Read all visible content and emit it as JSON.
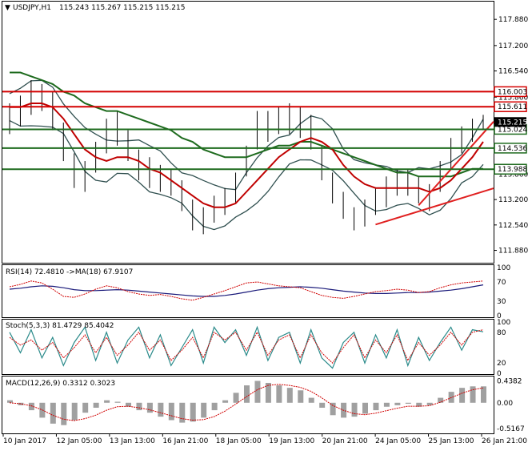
{
  "colors": {
    "background": "#ffffff",
    "price_bars": "#000000",
    "bollinger": "#2f4f4f",
    "ma_fast": "#c00000",
    "ma_slow": "#1e6b1e",
    "resistance": "#d40000",
    "support": "#1e6b1e",
    "trendline": "#e02020",
    "rsi": "#1a1a7a",
    "rsi_signal": "#d00000",
    "stoch_main": "#2a8a8a",
    "stoch_signal": "#d00000",
    "macd_hist": "#a0a0a0",
    "macd_signal": "#d00000"
  },
  "chart_data": {
    "type": "candlestick",
    "symbol_label": "USDJPY,H1",
    "ohlc_label": "115.243 115.267 115.215 115.215",
    "last_price": 115.215,
    "x_labels": [
      "10 Jan 2017",
      "12 Jan 05:00",
      "13 Jan 13:00",
      "16 Jan 21:00",
      "18 Jan 05:00",
      "19 Jan 13:00",
      "20 Jan 21:00",
      "24 Jan 05:00",
      "25 Jan 13:00",
      "26 Jan 21:00"
    ],
    "price_axis": {
      "ylim": [
        111.6,
        118.3
      ],
      "ticks": [
        "117.880",
        "117.200",
        "116.540",
        "115.860",
        "113.860",
        "113.200",
        "112.540",
        "111.880"
      ]
    },
    "price_close": [
      115.3,
      115.5,
      115.8,
      115.9,
      115.6,
      114.7,
      113.9,
      113.8,
      114.3,
      114.8,
      115.0,
      114.6,
      114.1,
      113.9,
      113.8,
      113.7,
      113.3,
      112.8,
      112.6,
      112.9,
      113.1,
      113.5,
      114.2,
      114.9,
      115.1,
      115.3,
      115.3,
      115.2,
      115.0,
      114.2,
      113.5,
      113.0,
      112.7,
      112.8,
      113.1,
      113.4,
      113.6,
      113.7,
      113.5,
      113.2,
      113.8,
      114.4,
      114.8,
      115.0,
      115.2
    ],
    "price_high": [
      115.7,
      115.9,
      116.3,
      116.2,
      116.0,
      115.2,
      114.4,
      114.2,
      114.7,
      115.3,
      115.5,
      115.0,
      114.5,
      114.3,
      114.1,
      114.0,
      113.7,
      113.2,
      113.0,
      113.3,
      113.5,
      113.9,
      114.6,
      115.5,
      115.5,
      115.6,
      115.7,
      115.6,
      115.4,
      114.6,
      113.9,
      113.4,
      113.0,
      113.2,
      113.5,
      113.8,
      114.0,
      114.0,
      113.8,
      113.6,
      114.2,
      114.8,
      115.1,
      115.3,
      115.4
    ],
    "price_low": [
      114.9,
      115.1,
      115.4,
      115.5,
      115.0,
      114.2,
      113.5,
      113.4,
      113.9,
      114.4,
      114.6,
      114.2,
      113.7,
      113.5,
      113.4,
      113.3,
      112.9,
      112.4,
      112.3,
      112.6,
      112.8,
      113.1,
      113.8,
      114.5,
      114.7,
      114.9,
      114.9,
      114.8,
      114.5,
      113.7,
      113.1,
      112.7,
      112.4,
      112.5,
      112.8,
      113.0,
      113.3,
      113.3,
      113.1,
      112.9,
      113.4,
      114.0,
      114.4,
      114.7,
      115.0
    ],
    "ma_fast": [
      115.6,
      115.6,
      115.7,
      115.7,
      115.6,
      115.3,
      114.9,
      114.5,
      114.3,
      114.2,
      114.3,
      114.3,
      114.2,
      114.0,
      113.9,
      113.7,
      113.5,
      113.3,
      113.1,
      113.0,
      113.0,
      113.1,
      113.4,
      113.7,
      114.0,
      114.3,
      114.5,
      114.7,
      114.8,
      114.7,
      114.5,
      114.1,
      113.8,
      113.6,
      113.5,
      113.5,
      113.5,
      113.5,
      113.5,
      113.4,
      113.5,
      113.7,
      114.0,
      114.3,
      114.7
    ],
    "ma_slow": [
      116.5,
      116.5,
      116.4,
      116.3,
      116.2,
      116.0,
      115.9,
      115.7,
      115.6,
      115.5,
      115.5,
      115.4,
      115.3,
      115.2,
      115.1,
      115.0,
      114.8,
      114.7,
      114.5,
      114.4,
      114.3,
      114.3,
      114.3,
      114.4,
      114.5,
      114.6,
      114.6,
      114.7,
      114.7,
      114.6,
      114.5,
      114.4,
      114.3,
      114.2,
      114.1,
      114.0,
      113.9,
      113.9,
      113.8,
      113.8,
      113.8,
      113.8,
      113.9,
      114.0,
      114.0
    ],
    "horizontal_levels": [
      {
        "label": "116.003",
        "value": 116.003,
        "kind": "resistance"
      },
      {
        "label": "115.611",
        "value": 115.611,
        "kind": "resistance"
      },
      {
        "label": "115.024",
        "value": 115.024,
        "kind": "support"
      },
      {
        "label": "114.536",
        "value": 114.536,
        "kind": "support"
      },
      {
        "label": "113.988",
        "value": 113.988,
        "kind": "support"
      }
    ],
    "trendlines": [
      {
        "from_index": 34,
        "from_value": 112.55,
        "to_index": 44,
        "to_value": 113.45
      },
      {
        "from_index": 38,
        "from_value": 113.05,
        "to_index": 44,
        "to_value": 115.1
      }
    ],
    "rsi": {
      "label": "RSI(14) 72.4810 ->MA(18) 67.9107",
      "ylim": [
        0,
        100
      ],
      "ticks": [
        "100",
        "70",
        "30",
        "0"
      ],
      "values": [
        60,
        65,
        72,
        68,
        55,
        40,
        38,
        45,
        55,
        62,
        58,
        50,
        45,
        42,
        44,
        40,
        35,
        32,
        38,
        45,
        52,
        60,
        68,
        70,
        66,
        62,
        60,
        58,
        50,
        42,
        38,
        36,
        40,
        45,
        50,
        52,
        55,
        53,
        48,
        50,
        58,
        64,
        68,
        70,
        72
      ],
      "signal": [
        55,
        57,
        60,
        62,
        61,
        58,
        54,
        52,
        52,
        53,
        54,
        53,
        51,
        49,
        47,
        45,
        43,
        41,
        40,
        40,
        42,
        45,
        49,
        53,
        56,
        58,
        59,
        60,
        59,
        57,
        54,
        51,
        49,
        47,
        46,
        46,
        47,
        48,
        48,
        49,
        51,
        53,
        56,
        60,
        64
      ]
    },
    "stoch": {
      "label": "Stoch(5,3,3) 81.4729 85.4042",
      "ylim": [
        0,
        100
      ],
      "ticks": [
        "100",
        "80",
        "20",
        "0"
      ],
      "main": [
        80,
        40,
        85,
        30,
        70,
        15,
        60,
        90,
        25,
        80,
        20,
        65,
        90,
        30,
        75,
        15,
        50,
        85,
        20,
        90,
        60,
        85,
        35,
        90,
        25,
        70,
        80,
        20,
        85,
        30,
        10,
        60,
        80,
        20,
        75,
        30,
        85,
        15,
        70,
        25,
        60,
        90,
        45,
        85,
        81
      ],
      "signal": [
        70,
        55,
        65,
        45,
        60,
        30,
        50,
        75,
        40,
        70,
        35,
        55,
        80,
        45,
        65,
        25,
        45,
        70,
        30,
        80,
        65,
        80,
        45,
        80,
        35,
        65,
        75,
        30,
        75,
        40,
        20,
        50,
        75,
        30,
        65,
        40,
        75,
        25,
        60,
        35,
        55,
        80,
        55,
        80,
        85
      ]
    },
    "macd": {
      "label": "MACD(12,26,9) 0.3312 0.3023",
      "ylim": [
        -0.6,
        0.48
      ],
      "ticks": [
        "0.4382",
        "0.00",
        "-0.5167"
      ],
      "hist": [
        0.05,
        -0.05,
        -0.15,
        -0.3,
        -0.42,
        -0.45,
        -0.35,
        -0.2,
        -0.1,
        0.05,
        0.02,
        -0.08,
        -0.15,
        -0.2,
        -0.28,
        -0.35,
        -0.4,
        -0.38,
        -0.3,
        -0.15,
        0.05,
        0.2,
        0.35,
        0.44,
        0.4,
        0.35,
        0.3,
        0.25,
        0.1,
        -0.1,
        -0.25,
        -0.3,
        -0.28,
        -0.22,
        -0.15,
        -0.08,
        -0.05,
        -0.02,
        -0.08,
        -0.05,
        0.1,
        0.22,
        0.3,
        0.33,
        0.33
      ],
      "signal": [
        0.0,
        -0.02,
        -0.06,
        -0.14,
        -0.25,
        -0.33,
        -0.36,
        -0.32,
        -0.25,
        -0.15,
        -0.08,
        -0.07,
        -0.1,
        -0.14,
        -0.2,
        -0.26,
        -0.32,
        -0.35,
        -0.34,
        -0.28,
        -0.17,
        -0.03,
        0.12,
        0.26,
        0.35,
        0.37,
        0.35,
        0.31,
        0.23,
        0.1,
        -0.05,
        -0.15,
        -0.22,
        -0.24,
        -0.21,
        -0.16,
        -0.11,
        -0.07,
        -0.07,
        -0.06,
        0.01,
        0.1,
        0.19,
        0.26,
        0.3
      ]
    }
  }
}
